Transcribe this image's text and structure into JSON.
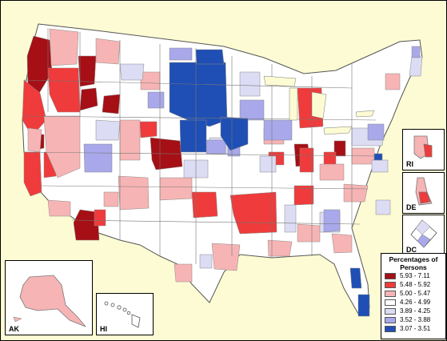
{
  "legend": {
    "title_line1": "Percentages of",
    "title_line2": "Persons",
    "classes": [
      {
        "label": "5.93 - 7.11",
        "color": "#a50f15"
      },
      {
        "label": "5.48 - 5.92",
        "color": "#ef3b3b"
      },
      {
        "label": "5.00 - 5.47",
        "color": "#f7b4b4"
      },
      {
        "label": "4.26 - 4.99",
        "color": "#ffffff"
      },
      {
        "label": "3.89 - 4.25",
        "color": "#dcdcf4"
      },
      {
        "label": "3.52 - 3.88",
        "color": "#a8a8ea"
      },
      {
        "label": "3.07 - 3.51",
        "color": "#1f4fb4"
      }
    ]
  },
  "insets": {
    "rhode_island": "RI",
    "delaware": "DE",
    "district_of_columbia": "DC",
    "alaska": "AK",
    "hawaii": "HI"
  },
  "colors": {
    "background": "#fdfbd3",
    "border": "#000000",
    "region_outline": "#888888"
  }
}
